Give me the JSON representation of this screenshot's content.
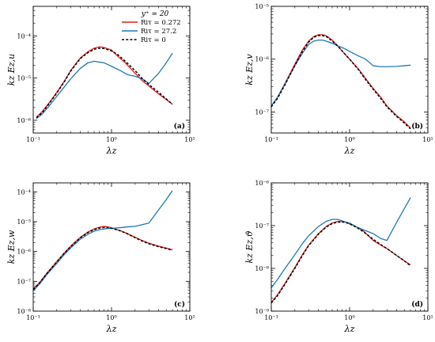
{
  "colors": {
    "ri_0272": "#e31a1c",
    "ri_272": "#1f78b4",
    "ri_0": "#000000"
  },
  "chart_data": [
    {
      "type": "line",
      "panel": "(a)",
      "xlabel": "λz",
      "ylabel": "kz Ez,u",
      "xscale": "log",
      "yscale": "log",
      "xlim": [
        0.1,
        10
      ],
      "ylim": [
        5e-07,
        0.0005
      ],
      "xticks": [
        0.1,
        1,
        10
      ],
      "xtick_labels": [
        "10⁻¹",
        "10⁰",
        "10¹"
      ],
      "yticks": [
        1e-06,
        1e-05,
        0.0001
      ],
      "ytick_labels": [
        "10⁻⁶",
        "10⁻⁵",
        "10⁻⁴"
      ],
      "legend": {
        "title": "y⁺ ≃ 20",
        "placement": "top-right",
        "entries": [
          "Riτ = 0.272",
          "Riτ = 27.2",
          "Riτ = 0"
        ]
      },
      "series": [
        {
          "name": "Riτ = 0.272",
          "style": "solid",
          "color": "#e31a1c",
          "x": [
            0.11,
            0.13,
            0.16,
            0.2,
            0.25,
            0.3,
            0.35,
            0.4,
            0.5,
            0.6,
            0.7,
            0.8,
            1.0,
            1.2,
            1.5,
            2.0,
            2.5,
            3.0,
            4.0,
            5.0,
            6.0
          ],
          "y": [
            1.2e-06,
            1.6e-06,
            2.6e-06,
            4.6e-06,
            8.5e-06,
            1.5e-05,
            2.2e-05,
            3e-05,
            4.2e-05,
            5.1e-05,
            5.5e-05,
            5.3e-05,
            4.6e-05,
            3.3e-05,
            2.3e-05,
            1.3e-05,
            8.5e-06,
            6.5e-06,
            4.2e-06,
            3.1e-06,
            2.4e-06
          ]
        },
        {
          "name": "Riτ = 27.2",
          "style": "solid",
          "color": "#1f78b4",
          "x": [
            0.11,
            0.13,
            0.16,
            0.2,
            0.25,
            0.3,
            0.35,
            0.4,
            0.5,
            0.6,
            0.8,
            1.0,
            1.3,
            1.6,
            2.0,
            2.5,
            3.0,
            4.0,
            5.0,
            6.0
          ],
          "y": [
            1.1e-06,
            1.4e-06,
            2.2e-06,
            3.7e-06,
            6.2e-06,
            9.5e-06,
            1.3e-05,
            1.7e-05,
            2.3e-05,
            2.5e-05,
            2.3e-05,
            1.9e-05,
            1.5e-05,
            1.2e-05,
            1.1e-05,
            9.5e-06,
            7.5e-06,
            1.3e-05,
            2.3e-05,
            3.9e-05
          ]
        },
        {
          "name": "Riτ = 0",
          "style": "dashed",
          "color": "#000000",
          "x": [
            0.11,
            0.13,
            0.16,
            0.2,
            0.25,
            0.3,
            0.35,
            0.4,
            0.5,
            0.6,
            0.7,
            0.8,
            1.0,
            1.2,
            1.5,
            2.0,
            2.5,
            3.0,
            4.0,
            5.0,
            6.0
          ],
          "y": [
            1.15e-06,
            1.5e-06,
            2.5e-06,
            4.4e-06,
            8.2e-06,
            1.45e-05,
            2.1e-05,
            2.9e-05,
            4e-05,
            4.8e-05,
            5.1e-05,
            5e-05,
            4.4e-05,
            3.6e-05,
            2.5e-05,
            1.5e-05,
            9.5e-06,
            7e-06,
            4.6e-06,
            3.2e-06,
            2.4e-06
          ]
        }
      ]
    },
    {
      "type": "line",
      "panel": "(b)",
      "xlabel": "λz",
      "ylabel": "kz Ez,v",
      "xscale": "log",
      "yscale": "log",
      "xlim": [
        0.1,
        10
      ],
      "ylim": [
        4e-08,
        1e-05
      ],
      "xticks": [
        0.1,
        1,
        10
      ],
      "xtick_labels": [
        "10⁻¹",
        "10⁰",
        "10¹"
      ],
      "yticks": [
        1e-07,
        1e-06,
        1e-05
      ],
      "ytick_labels": [
        "10⁻⁷",
        "10⁻⁶",
        "10⁻⁵"
      ],
      "series": [
        {
          "name": "Riτ = 0.272",
          "style": "solid",
          "color": "#e31a1c",
          "x": [
            0.1,
            0.12,
            0.15,
            0.2,
            0.25,
            0.3,
            0.35,
            0.4,
            0.45,
            0.5,
            0.6,
            0.7,
            0.85,
            1.0,
            1.3,
            1.6,
            2.0,
            2.5,
            3.0,
            4.0,
            5.0,
            6.0
          ],
          "y": [
            1.3e-07,
            1.9e-07,
            3.5e-07,
            8e-07,
            1.5e-06,
            2.2e-06,
            2.7e-06,
            2.9e-06,
            2.9e-06,
            2.8e-06,
            2.3e-06,
            1.8e-06,
            1.3e-06,
            1e-06,
            6.5e-07,
            4.3e-07,
            2.8e-07,
            1.9e-07,
            1.3e-07,
            8.5e-08,
            6.5e-08,
            5e-08
          ]
        },
        {
          "name": "Riτ = 27.2",
          "style": "solid",
          "color": "#1f78b4",
          "x": [
            0.1,
            0.12,
            0.15,
            0.2,
            0.25,
            0.3,
            0.35,
            0.4,
            0.45,
            0.5,
            0.6,
            0.7,
            0.85,
            1.0,
            1.3,
            1.6,
            2.0,
            2.5,
            3.0,
            4.0,
            5.0,
            6.0
          ],
          "y": [
            1.3e-07,
            1.9e-07,
            3.4e-07,
            7.5e-07,
            1.3e-06,
            1.9e-06,
            2.2e-06,
            2.3e-06,
            2.3e-06,
            2.2e-06,
            2e-06,
            1.8e-06,
            1.6e-06,
            1.4e-06,
            1.15e-06,
            1e-06,
            7.5e-07,
            7.2e-07,
            7.2e-07,
            7.3e-07,
            7.5e-07,
            7.7e-07
          ]
        },
        {
          "name": "Riτ = 0",
          "style": "dashed",
          "color": "#000000",
          "x": [
            0.1,
            0.12,
            0.15,
            0.2,
            0.25,
            0.3,
            0.35,
            0.4,
            0.45,
            0.5,
            0.6,
            0.7,
            0.85,
            1.0,
            1.3,
            1.6,
            2.0,
            2.5,
            3.0,
            4.0,
            5.0,
            6.0
          ],
          "y": [
            1.25e-07,
            1.8e-07,
            3.3e-07,
            7.6e-07,
            1.4e-06,
            2.1e-06,
            2.6e-06,
            2.8e-06,
            2.8e-06,
            2.7e-06,
            2.2e-06,
            1.8e-06,
            1.3e-06,
            1e-06,
            6.3e-07,
            4.1e-07,
            2.7e-07,
            1.8e-07,
            1.25e-07,
            8.2e-08,
            6.2e-08,
            4.8e-08
          ]
        }
      ]
    },
    {
      "type": "line",
      "panel": "(c)",
      "xlabel": "λz",
      "ylabel": "kz Ez,w",
      "xscale": "log",
      "yscale": "log",
      "xlim": [
        0.1,
        10
      ],
      "ylim": [
        1e-08,
        0.0002
      ],
      "xticks": [
        0.1,
        1,
        10
      ],
      "xtick_labels": [
        "10⁻¹",
        "10⁰",
        "10¹"
      ],
      "yticks": [
        1e-08,
        1e-07,
        1e-06,
        1e-05,
        0.0001
      ],
      "ytick_labels": [
        "10⁻⁸",
        "10⁻⁷",
        "10⁻⁶",
        "10⁻⁵",
        "10⁻⁴"
      ],
      "series": [
        {
          "name": "Riτ = 0.272",
          "style": "solid",
          "color": "#e31a1c",
          "x": [
            0.1,
            0.12,
            0.15,
            0.2,
            0.25,
            0.3,
            0.4,
            0.5,
            0.6,
            0.7,
            0.8,
            0.9,
            1.0,
            1.3,
            1.6,
            2.0,
            2.5,
            3.0,
            4.0,
            5.0,
            6.0
          ],
          "y": [
            5.5e-08,
            9e-08,
            1.9e-07,
            4.6e-07,
            9e-07,
            1.5e-06,
            3e-06,
            4.5e-06,
            5.7e-06,
            6.5e-06,
            6.9e-06,
            6.7e-06,
            6.2e-06,
            5e-06,
            4e-06,
            3e-06,
            2.3e-06,
            1.9e-06,
            1.5e-06,
            1.3e-06,
            1.15e-06
          ]
        },
        {
          "name": "Riτ = 27.2",
          "style": "solid",
          "color": "#1f78b4",
          "x": [
            0.1,
            0.12,
            0.15,
            0.2,
            0.25,
            0.3,
            0.4,
            0.5,
            0.6,
            0.7,
            0.8,
            0.9,
            1.0,
            1.3,
            1.6,
            2.0,
            2.5,
            3.0,
            4.0,
            5.0,
            6.0
          ],
          "y": [
            4.8e-08,
            8e-08,
            1.7e-07,
            4e-07,
            8e-07,
            1.3e-06,
            2.6e-06,
            3.8e-06,
            4.8e-06,
            5.4e-06,
            5.7e-06,
            5.9e-06,
            6e-06,
            6.3e-06,
            6.7e-06,
            7e-06,
            8e-06,
            9e-06,
            2.5e-05,
            5.5e-05,
            0.00011
          ]
        },
        {
          "name": "Riτ = 0",
          "style": "dashed",
          "color": "#000000",
          "x": [
            0.1,
            0.12,
            0.15,
            0.2,
            0.25,
            0.3,
            0.4,
            0.5,
            0.6,
            0.7,
            0.8,
            0.9,
            1.0,
            1.3,
            1.6,
            2.0,
            2.5,
            3.0,
            4.0,
            5.0,
            6.0
          ],
          "y": [
            5.3e-08,
            8.7e-08,
            1.85e-07,
            4.5e-07,
            8.8e-07,
            1.45e-06,
            2.9e-06,
            4.3e-06,
            5.4e-06,
            6.1e-06,
            6.4e-06,
            6.3e-06,
            6e-06,
            4.9e-06,
            3.9e-06,
            2.9e-06,
            2.2e-06,
            1.8e-06,
            1.45e-06,
            1.25e-06,
            1.1e-06
          ]
        }
      ]
    },
    {
      "type": "line",
      "panel": "(d)",
      "xlabel": "λz",
      "ylabel": "kz Ez,ϑ",
      "xscale": "log",
      "yscale": "log",
      "xlim": [
        0.1,
        10
      ],
      "ylim": [
        1e-09,
        1e-06
      ],
      "xticks": [
        0.1,
        1,
        10
      ],
      "xtick_labels": [
        "10⁻¹",
        "10⁰",
        "10¹"
      ],
      "yticks": [
        1e-09,
        1e-08,
        1e-07,
        1e-06
      ],
      "ytick_labels": [
        "10⁻⁹",
        "10⁻⁸",
        "10⁻⁷",
        "10⁻⁶"
      ],
      "series": [
        {
          "name": "Riτ = 0.272",
          "style": "solid",
          "color": "#e31a1c",
          "x": [
            0.1,
            0.12,
            0.15,
            0.2,
            0.25,
            0.3,
            0.4,
            0.5,
            0.6,
            0.7,
            0.8,
            0.9,
            1.0,
            1.2,
            1.5,
            2.0,
            2.5,
            3.0,
            4.0,
            5.0,
            6.0
          ],
          "y": [
            1.6e-09,
            2.4e-09,
            4.5e-09,
            1.05e-08,
            2.1e-08,
            3.5e-08,
            6.5e-08,
            9.5e-08,
            1.15e-07,
            1.25e-07,
            1.25e-07,
            1.2e-07,
            1.1e-07,
            9.5e-08,
            7.5e-08,
            4.5e-08,
            3.5e-08,
            2.9e-08,
            2e-08,
            1.5e-08,
            1.2e-08
          ]
        },
        {
          "name": "Riτ = 27.2",
          "style": "solid",
          "color": "#1f78b4",
          "x": [
            0.1,
            0.12,
            0.15,
            0.2,
            0.25,
            0.3,
            0.4,
            0.5,
            0.6,
            0.7,
            0.8,
            0.9,
            1.0,
            1.2,
            1.5,
            2.0,
            2.5,
            3.0,
            4.0,
            5.0,
            6.0
          ],
          "y": [
            3.5e-09,
            5.5e-09,
            1e-08,
            2.1e-08,
            3.8e-08,
            5.8e-08,
            9.5e-08,
            1.25e-07,
            1.4e-07,
            1.4e-07,
            1.3e-07,
            1.2e-07,
            1.15e-07,
            9.5e-08,
            8e-08,
            6.5e-08,
            5e-08,
            4.5e-08,
            1.2e-07,
            2.5e-07,
            4.5e-07
          ]
        },
        {
          "name": "Riτ = 0",
          "style": "dashed",
          "color": "#000000",
          "x": [
            0.1,
            0.12,
            0.15,
            0.2,
            0.25,
            0.3,
            0.4,
            0.5,
            0.6,
            0.7,
            0.8,
            0.9,
            1.0,
            1.2,
            1.5,
            2.0,
            2.5,
            3.0,
            4.0,
            5.0,
            6.0
          ],
          "y": [
            1.55e-09,
            2.3e-09,
            4.3e-09,
            1e-08,
            2e-08,
            3.4e-08,
            6.3e-08,
            9.2e-08,
            1.12e-07,
            1.2e-07,
            1.22e-07,
            1.18e-07,
            1.1e-07,
            9.3e-08,
            7.2e-08,
            4.8e-08,
            3.6e-08,
            2.9e-08,
            2e-08,
            1.5e-08,
            1.15e-08
          ]
        }
      ]
    }
  ]
}
